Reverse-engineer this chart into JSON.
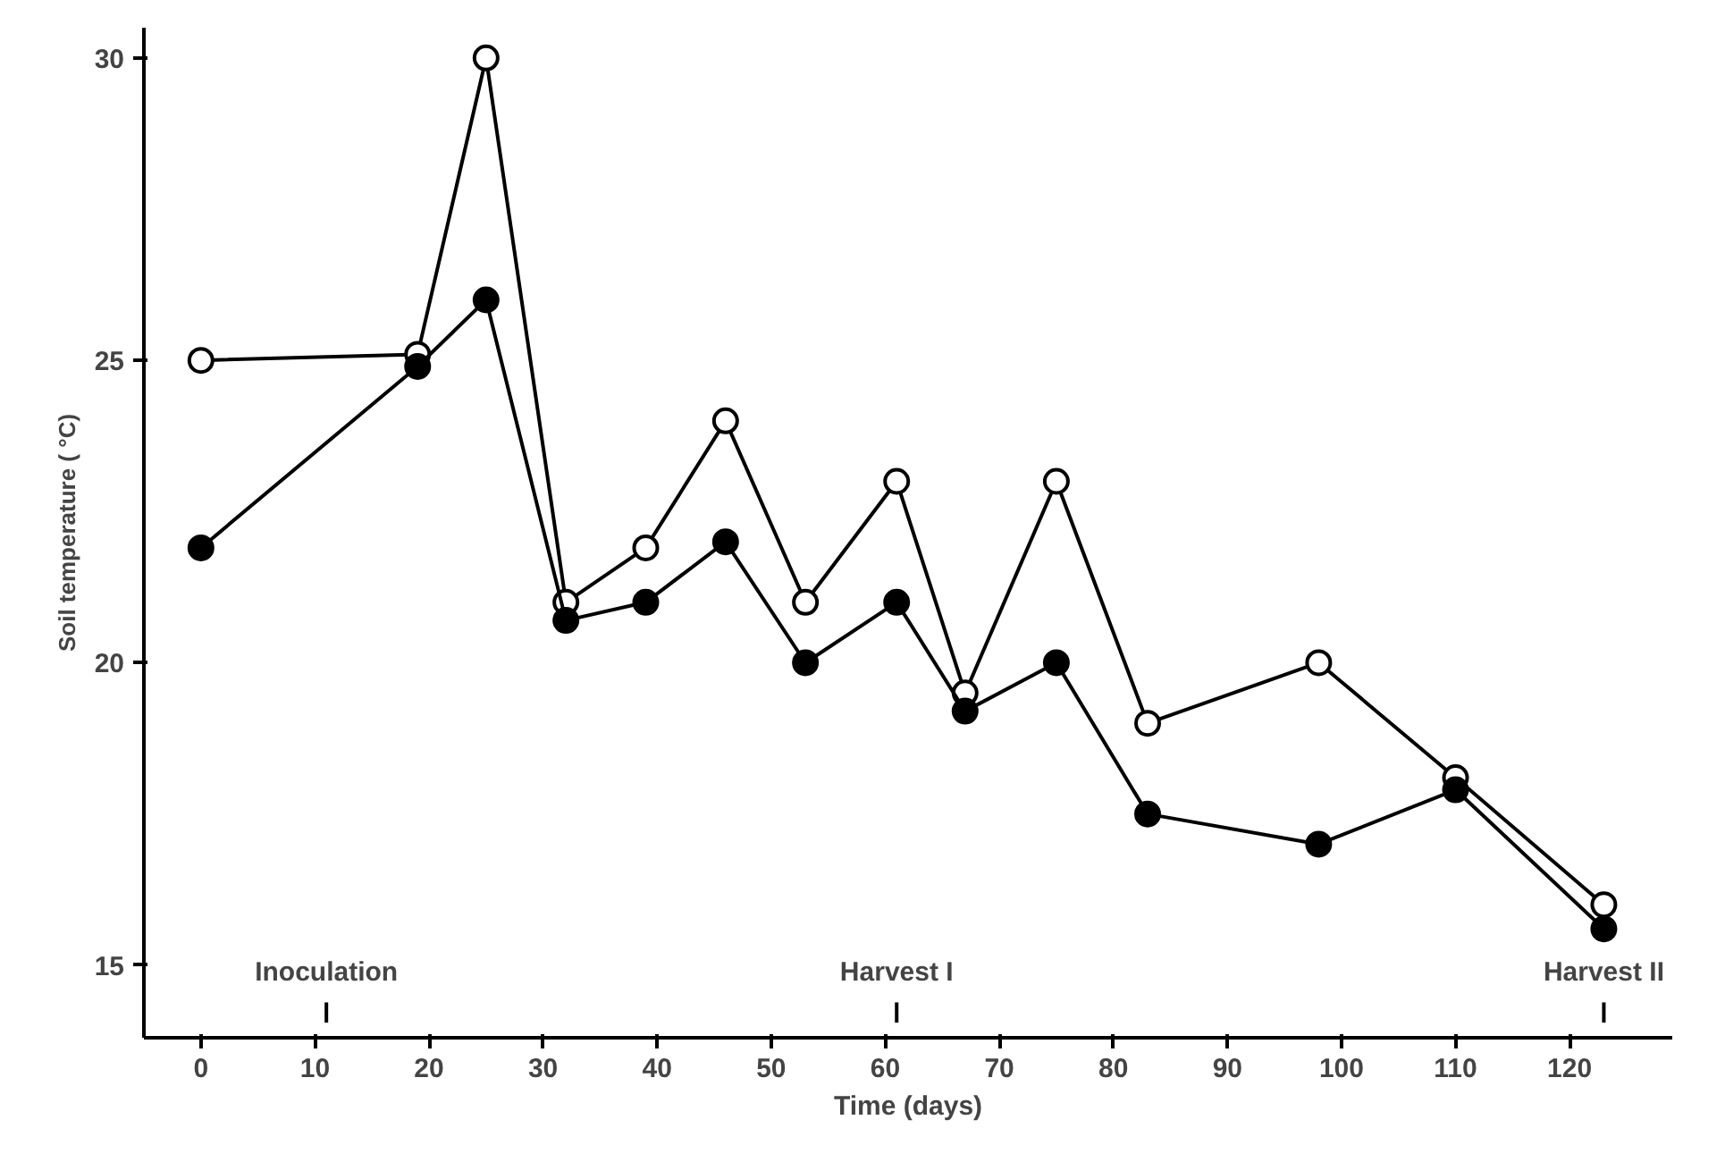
{
  "chart_data": {
    "type": "line",
    "xlabel": "Time (days)",
    "ylabel": "Soil temperature ( °C)",
    "x": [
      0,
      19,
      25,
      32,
      39,
      46,
      53,
      61,
      67,
      75,
      83,
      98,
      110,
      123
    ],
    "series": [
      {
        "color": "#000000",
        "values": [
          25,
          25.1,
          30,
          21,
          21.9,
          24,
          21,
          23,
          19.5,
          23,
          19,
          20,
          18.1,
          16
        ]
      },
      {
        "color": "#000000",
        "values": [
          21.9,
          24.9,
          26,
          20.7,
          21,
          22,
          20,
          21,
          19.2,
          20,
          17.5,
          17,
          17.9,
          15.6
        ]
      }
    ],
    "xlim": [
      -5,
      129
    ],
    "xticks": [
      0,
      10,
      20,
      30,
      40,
      50,
      60,
      70,
      80,
      90,
      100,
      110,
      120
    ],
    "ylim": [
      13.8,
      30.5
    ],
    "yticks": [
      15,
      20,
      25,
      30
    ],
    "ref_lines": [
      {
        "axis": "x",
        "value": 11,
        "label": "Inoculation"
      },
      {
        "axis": "x",
        "value": 61,
        "label": "Harvest I"
      },
      {
        "axis": "x",
        "value": 123,
        "label": "Harvest II"
      }
    ],
    "grid": false,
    "marker": "circle",
    "line_style": "solid"
  }
}
